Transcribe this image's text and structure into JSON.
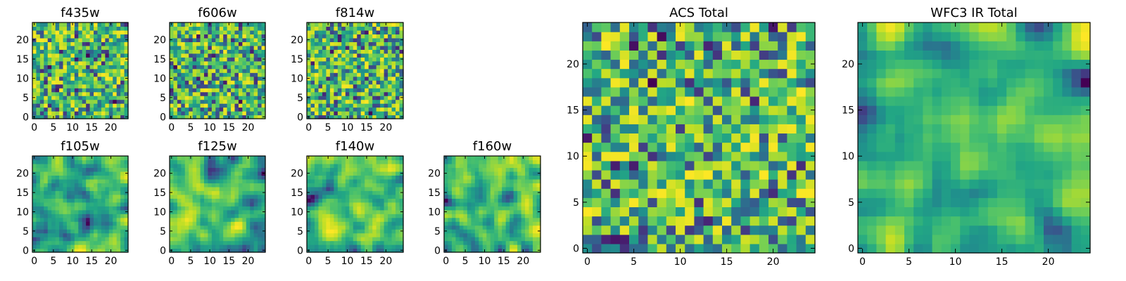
{
  "chart_data": [
    {
      "type": "heatmap",
      "title": "f435w",
      "pixels": 25,
      "colormap": "viridis",
      "xticks": [
        "0",
        "5",
        "10",
        "15",
        "20"
      ],
      "yticks": [
        "0",
        "5",
        "10",
        "15",
        "20"
      ],
      "xlim": [
        -0.5,
        24.5
      ],
      "ylim": [
        -0.5,
        24.5
      ],
      "pattern": "noise",
      "seed": 11
    },
    {
      "type": "heatmap",
      "title": "f606w",
      "pixels": 25,
      "colormap": "viridis",
      "xticks": [
        "0",
        "5",
        "10",
        "15",
        "20"
      ],
      "yticks": [
        "0",
        "5",
        "10",
        "15",
        "20"
      ],
      "xlim": [
        -0.5,
        24.5
      ],
      "ylim": [
        -0.5,
        24.5
      ],
      "pattern": "noise",
      "seed": 23
    },
    {
      "type": "heatmap",
      "title": "f814w",
      "pixels": 25,
      "colormap": "viridis",
      "xticks": [
        "0",
        "5",
        "10",
        "15",
        "20"
      ],
      "yticks": [
        "0",
        "5",
        "10",
        "15",
        "20"
      ],
      "xlim": [
        -0.5,
        24.5
      ],
      "ylim": [
        -0.5,
        24.5
      ],
      "pattern": "noise",
      "seed": 37
    },
    {
      "type": "heatmap",
      "title": "f105w",
      "pixels": 25,
      "colormap": "viridis",
      "xticks": [
        "0",
        "5",
        "10",
        "15",
        "20"
      ],
      "yticks": [
        "0",
        "5",
        "10",
        "15",
        "20"
      ],
      "xlim": [
        -0.5,
        24.5
      ],
      "ylim": [
        -0.5,
        24.5
      ],
      "pattern": "smooth",
      "seed": 41
    },
    {
      "type": "heatmap",
      "title": "f125w",
      "pixels": 25,
      "colormap": "viridis",
      "xticks": [
        "0",
        "5",
        "10",
        "15",
        "20"
      ],
      "yticks": [
        "0",
        "5",
        "10",
        "15",
        "20"
      ],
      "xlim": [
        -0.5,
        24.5
      ],
      "ylim": [
        -0.5,
        24.5
      ],
      "pattern": "smooth",
      "seed": 53
    },
    {
      "type": "heatmap",
      "title": "f140w",
      "pixels": 25,
      "colormap": "viridis",
      "xticks": [
        "0",
        "5",
        "10",
        "15",
        "20"
      ],
      "yticks": [
        "0",
        "5",
        "10",
        "15",
        "20"
      ],
      "xlim": [
        -0.5,
        24.5
      ],
      "ylim": [
        -0.5,
        24.5
      ],
      "pattern": "smooth",
      "seed": 67
    },
    {
      "type": "heatmap",
      "title": "f160w",
      "pixels": 25,
      "colormap": "viridis",
      "xticks": [
        "0",
        "5",
        "10",
        "15",
        "20"
      ],
      "yticks": [
        "0",
        "5",
        "10",
        "15",
        "20"
      ],
      "xlim": [
        -0.5,
        24.5
      ],
      "ylim": [
        -0.5,
        24.5
      ],
      "pattern": "smooth",
      "seed": 79
    },
    {
      "type": "heatmap",
      "title": "ACS Total",
      "pixels": 25,
      "colormap": "viridis",
      "xticks": [
        "0",
        "5",
        "10",
        "15",
        "20"
      ],
      "yticks": [
        "0",
        "5",
        "10",
        "15",
        "20"
      ],
      "xlim": [
        -0.5,
        24.5
      ],
      "ylim": [
        -0.5,
        24.5
      ],
      "pattern": "noise",
      "seed": 97
    },
    {
      "type": "heatmap",
      "title": "WFC3 IR Total",
      "pixels": 25,
      "colormap": "viridis",
      "xticks": [
        "0",
        "5",
        "10",
        "15",
        "20"
      ],
      "yticks": [
        "0",
        "5",
        "10",
        "15",
        "20"
      ],
      "xlim": [
        -0.5,
        24.5
      ],
      "ylim": [
        -0.5,
        24.5
      ],
      "pattern": "smooth",
      "seed": 113
    }
  ]
}
